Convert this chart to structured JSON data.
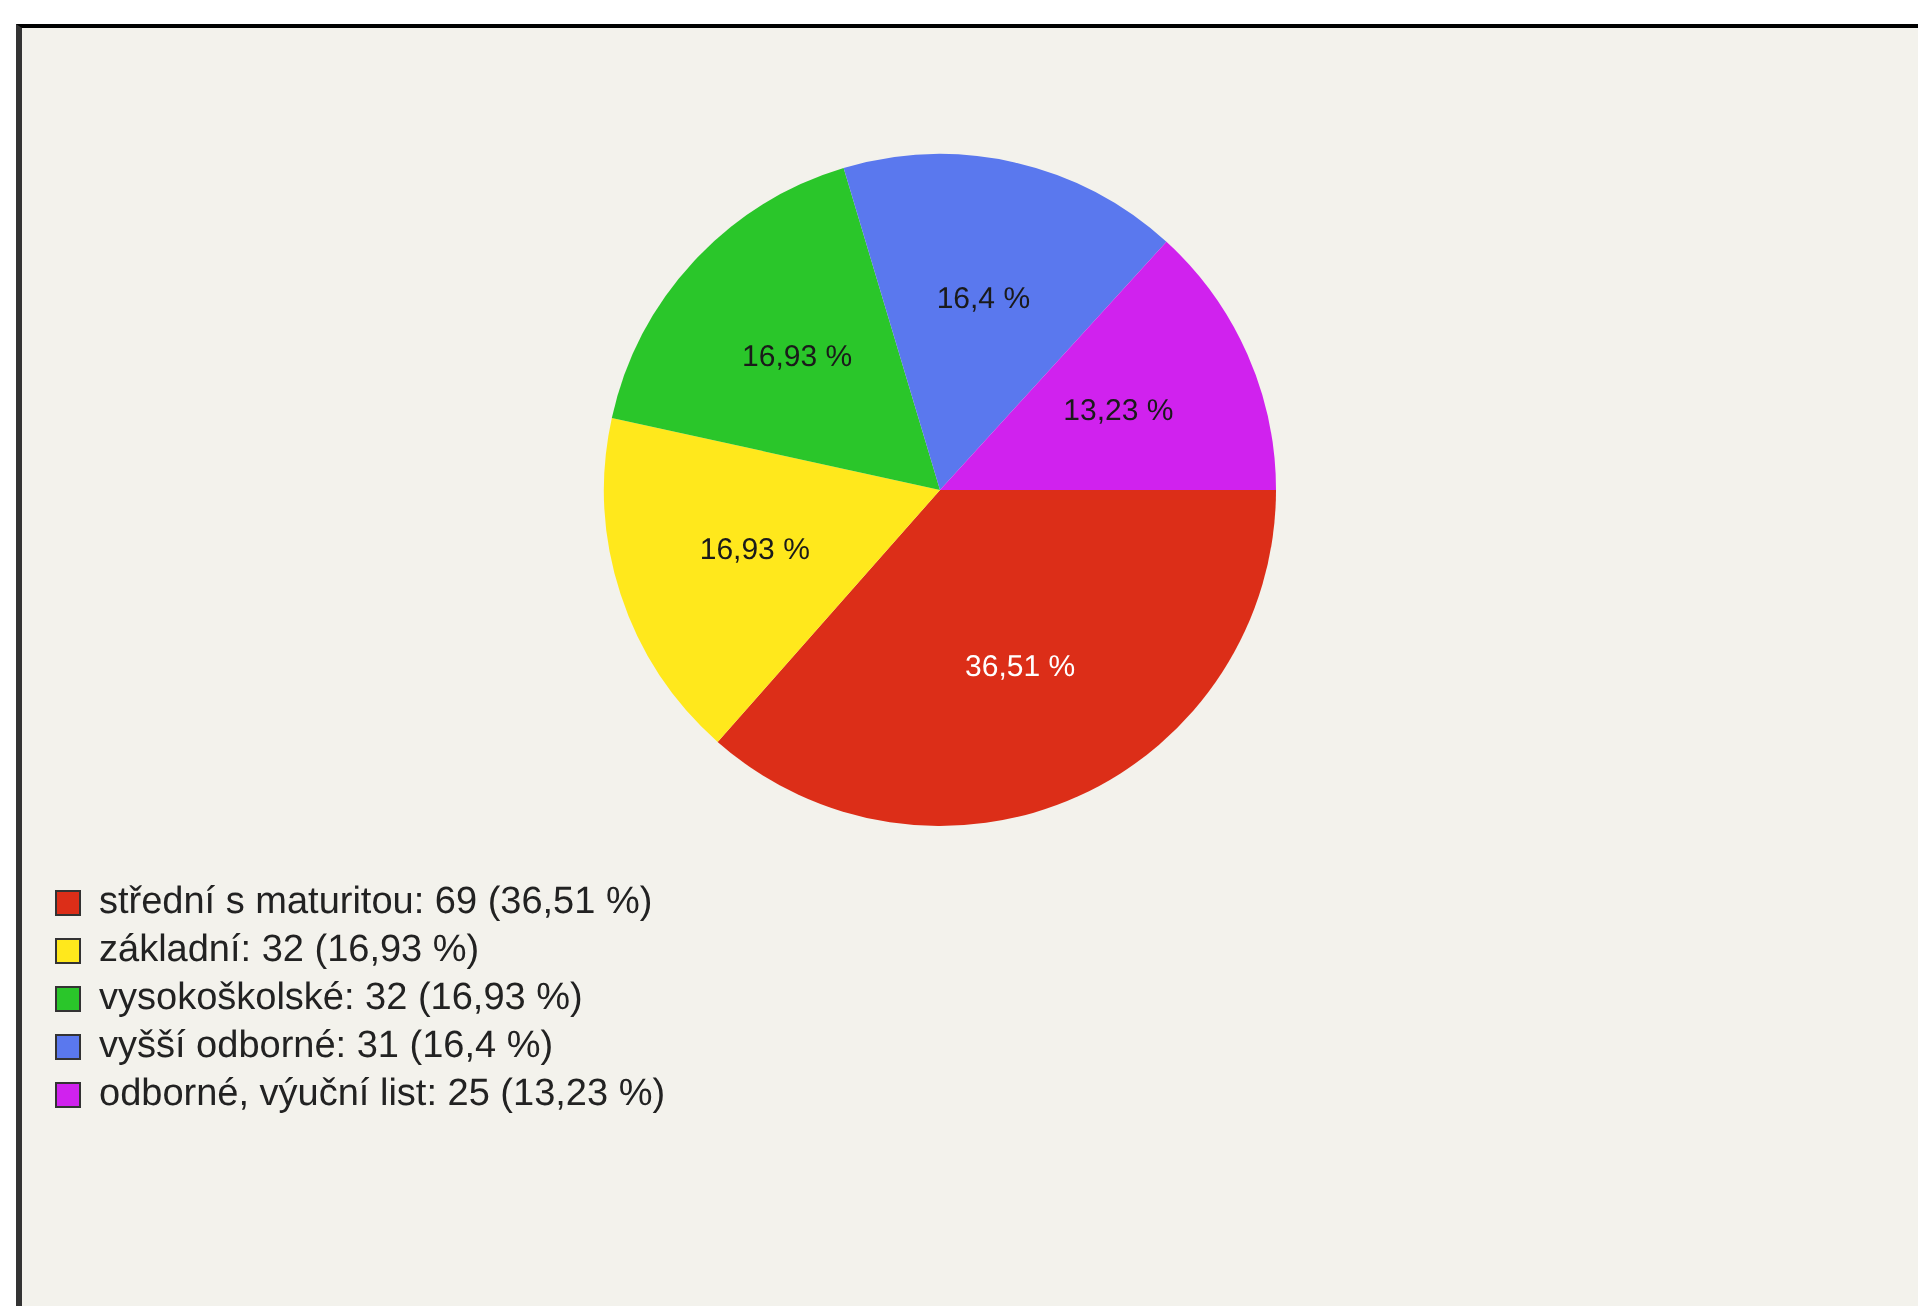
{
  "chart_data": {
    "type": "pie",
    "categories": [
      "střední s maturitou: 69 (36,51 %)",
      "základní: 32 (16,93 %)",
      "vysokoškolské: 32 (16,93 %)",
      "vyšší odborné: 31 (16,4 %)",
      "odborné, výuční list: 25 (13,23 %)"
    ],
    "values": [
      36.51,
      16.93,
      16.93,
      16.4,
      13.23
    ],
    "value_labels": [
      "36,51 %",
      "16,93 %",
      "16,93 %",
      "16,4 %",
      "13,23 %"
    ],
    "colors": [
      "#dc2e18",
      "#ffe81c",
      "#2ac62a",
      "#5a78ee",
      "#d022ee"
    ],
    "legend": "bottom left"
  }
}
